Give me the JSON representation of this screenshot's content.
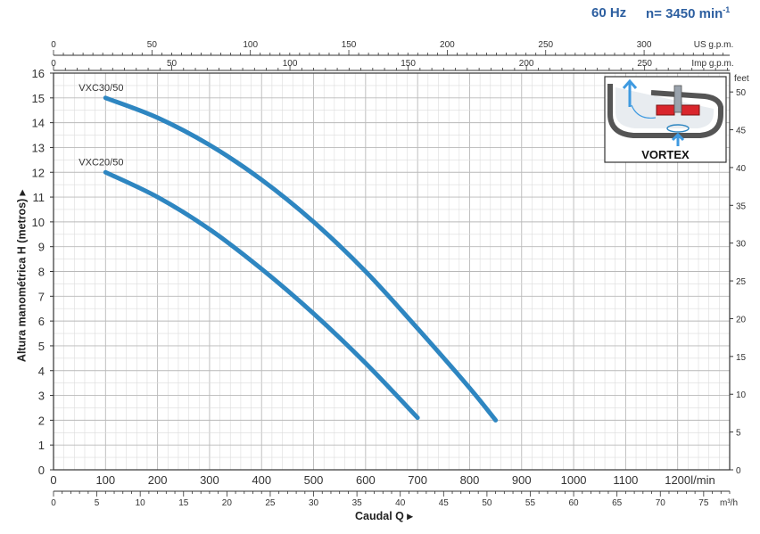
{
  "header": {
    "frequency": "60 Hz",
    "speed": "n= 3450 min",
    "speed_exp": "-1"
  },
  "inset": {
    "label": "VORTEX"
  },
  "chart_data": {
    "type": "line",
    "title": "",
    "xlabel": "Caudal Q",
    "ylabel": "Altura manométrica H (metros)",
    "xlim": [
      0,
      1300
    ],
    "ylim": [
      0,
      16
    ],
    "grid": true,
    "x_unit": "l/min",
    "x_ticks": [
      "0",
      "100",
      "200",
      "300",
      "400",
      "500",
      "600",
      "700",
      "800",
      "900",
      "1000",
      "1100",
      "1200"
    ],
    "y_ticks": [
      "0",
      "1",
      "2",
      "3",
      "4",
      "5",
      "6",
      "7",
      "8",
      "9",
      "10",
      "11",
      "12",
      "13",
      "14",
      "15",
      "16"
    ],
    "axis_us_gpm": {
      "unit": "US g.p.m.",
      "ticks": [
        "0",
        "50",
        "100",
        "150",
        "200",
        "250",
        "300"
      ]
    },
    "axis_imp_gpm": {
      "unit": "Imp g.p.m.",
      "ticks": [
        "0",
        "50",
        "100",
        "150",
        "200",
        "250"
      ]
    },
    "axis_m3h": {
      "unit": "m³/h",
      "ticks": [
        "0",
        "5",
        "10",
        "15",
        "20",
        "25",
        "30",
        "35",
        "40",
        "45",
        "50",
        "55",
        "60",
        "65",
        "70",
        "75"
      ]
    },
    "axis_feet": {
      "unit": "feet",
      "ticks": [
        "0",
        "5",
        "10",
        "15",
        "20",
        "25",
        "30",
        "35",
        "40",
        "45",
        "50"
      ]
    },
    "series": [
      {
        "name": "VXC30/50",
        "color": "#2e86c1",
        "x": [
          100,
          200,
          300,
          400,
          500,
          600,
          700,
          800,
          850
        ],
        "y": [
          15.0,
          14.2,
          13.1,
          11.7,
          10.0,
          8.0,
          5.7,
          3.3,
          2.0
        ]
      },
      {
        "name": "VXC20/50",
        "color": "#2e86c1",
        "x": [
          100,
          200,
          300,
          400,
          500,
          600,
          700
        ],
        "y": [
          12.0,
          11.0,
          9.7,
          8.1,
          6.3,
          4.3,
          2.1
        ]
      }
    ]
  }
}
